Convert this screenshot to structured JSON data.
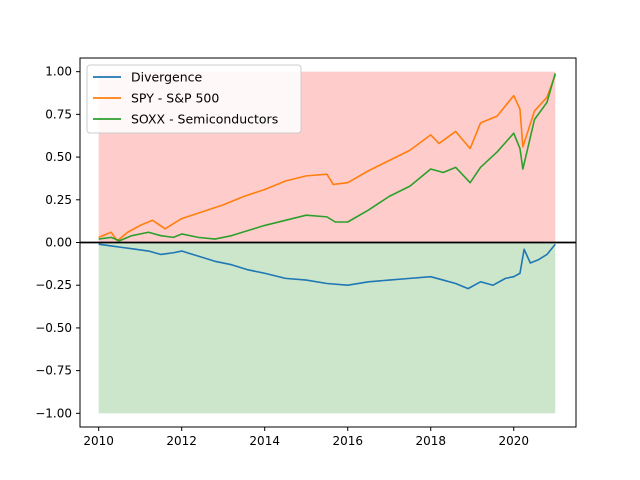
{
  "chart_data": {
    "type": "line",
    "title": "",
    "xlabel": "",
    "ylabel": "",
    "xlim": [
      2009.55,
      2021.5
    ],
    "ylim": [
      -1.08,
      1.08
    ],
    "x_ticks": [
      2010,
      2012,
      2014,
      2016,
      2018,
      2020
    ],
    "y_ticks": [
      -1.0,
      -0.75,
      -0.5,
      -0.25,
      0.0,
      0.25,
      0.5,
      0.75,
      1.0
    ],
    "y_tick_labels": [
      "−1.00",
      "−0.75",
      "−0.50",
      "−0.25",
      "0.00",
      "0.25",
      "0.50",
      "0.75",
      "1.00"
    ],
    "grid": false,
    "legend_placement": "top-left",
    "zero_line": {
      "y": 0,
      "color": "#000000"
    },
    "bands": [
      {
        "x": [
          2010.0,
          2021.0
        ],
        "y": [
          0,
          1.0
        ],
        "color": "#ff0000",
        "opacity": 0.2
      },
      {
        "x": [
          2010.0,
          2021.0
        ],
        "y": [
          -1.0,
          0
        ],
        "color": "#008000",
        "opacity": 0.2
      }
    ],
    "series": [
      {
        "name": "Divergence",
        "color": "#1f77b4",
        "x": [
          2010.0,
          2010.3,
          2010.6,
          2010.9,
          2011.2,
          2011.5,
          2011.8,
          2012.0,
          2012.4,
          2012.8,
          2013.2,
          2013.6,
          2014.0,
          2014.5,
          2015.0,
          2015.5,
          2016.0,
          2016.5,
          2017.0,
          2017.5,
          2018.0,
          2018.3,
          2018.6,
          2018.9,
          2019.2,
          2019.5,
          2019.8,
          2020.0,
          2020.15,
          2020.25,
          2020.4,
          2020.6,
          2020.8,
          2021.0
        ],
        "y": [
          -0.01,
          -0.02,
          -0.03,
          -0.04,
          -0.05,
          -0.07,
          -0.06,
          -0.05,
          -0.08,
          -0.11,
          -0.13,
          -0.16,
          -0.18,
          -0.21,
          -0.22,
          -0.24,
          -0.25,
          -0.23,
          -0.22,
          -0.21,
          -0.2,
          -0.22,
          -0.24,
          -0.27,
          -0.23,
          -0.25,
          -0.21,
          -0.2,
          -0.18,
          -0.04,
          -0.12,
          -0.1,
          -0.07,
          -0.01
        ]
      },
      {
        "name": "SPY - S&P 500",
        "color": "#ff7f0e",
        "x": [
          2010.0,
          2010.3,
          2010.45,
          2010.7,
          2011.0,
          2011.3,
          2011.6,
          2011.8,
          2012.0,
          2012.5,
          2013.0,
          2013.5,
          2014.0,
          2014.5,
          2015.0,
          2015.5,
          2015.65,
          2016.0,
          2016.5,
          2017.0,
          2017.5,
          2018.0,
          2018.2,
          2018.6,
          2018.95,
          2019.2,
          2019.6,
          2020.0,
          2020.15,
          2020.22,
          2020.5,
          2020.8,
          2021.0
        ],
        "y": [
          0.03,
          0.06,
          0.01,
          0.06,
          0.1,
          0.13,
          0.08,
          0.11,
          0.14,
          0.18,
          0.22,
          0.27,
          0.31,
          0.36,
          0.39,
          0.4,
          0.34,
          0.35,
          0.42,
          0.48,
          0.54,
          0.63,
          0.58,
          0.65,
          0.55,
          0.7,
          0.74,
          0.86,
          0.78,
          0.56,
          0.77,
          0.85,
          0.98
        ]
      },
      {
        "name": "SOXX - Semiconductors",
        "color": "#2ca02c",
        "x": [
          2010.0,
          2010.3,
          2010.5,
          2010.8,
          2011.2,
          2011.5,
          2011.8,
          2012.0,
          2012.4,
          2012.8,
          2013.2,
          2013.6,
          2014.0,
          2014.5,
          2015.0,
          2015.5,
          2015.7,
          2016.0,
          2016.5,
          2017.0,
          2017.5,
          2018.0,
          2018.3,
          2018.6,
          2018.95,
          2019.2,
          2019.6,
          2020.0,
          2020.15,
          2020.22,
          2020.5,
          2020.8,
          2021.0
        ],
        "y": [
          0.02,
          0.03,
          0.01,
          0.04,
          0.06,
          0.04,
          0.03,
          0.05,
          0.03,
          0.02,
          0.04,
          0.07,
          0.1,
          0.13,
          0.16,
          0.15,
          0.12,
          0.12,
          0.19,
          0.27,
          0.33,
          0.43,
          0.41,
          0.44,
          0.35,
          0.44,
          0.53,
          0.64,
          0.55,
          0.43,
          0.72,
          0.82,
          0.99
        ]
      }
    ]
  }
}
